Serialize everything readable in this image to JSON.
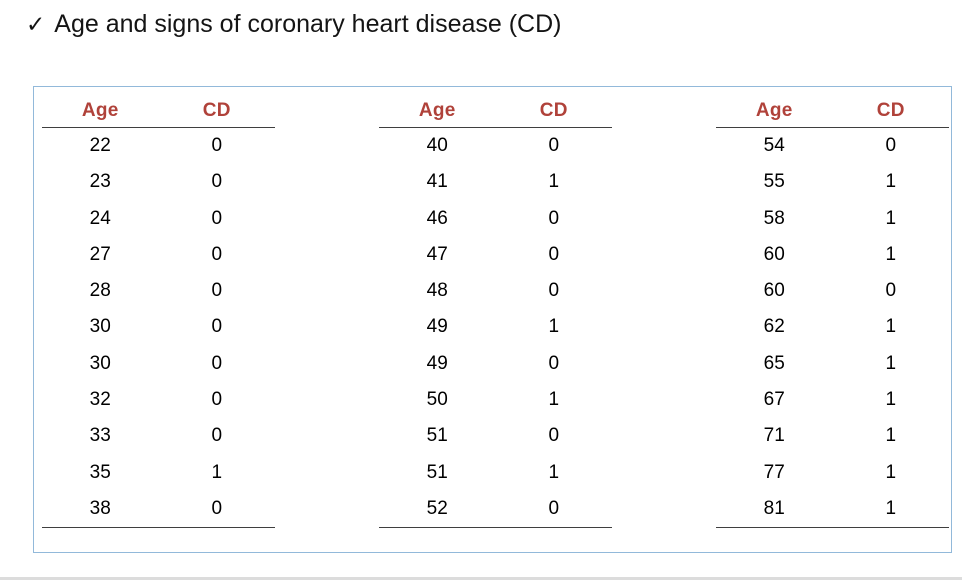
{
  "title": {
    "check": "✓",
    "text": "Age and signs of coronary heart disease (CD)"
  },
  "colors": {
    "header_text": "#b0423a",
    "box_border": "#92b9da",
    "rule": "#3f3f3f"
  },
  "table": {
    "groups": [
      {
        "headers": [
          "Age",
          "CD"
        ],
        "rows": [
          [
            "22",
            "0"
          ],
          [
            "23",
            "0"
          ],
          [
            "24",
            "0"
          ],
          [
            "27",
            "0"
          ],
          [
            "28",
            "0"
          ],
          [
            "30",
            "0"
          ],
          [
            "30",
            "0"
          ],
          [
            "32",
            "0"
          ],
          [
            "33",
            "0"
          ],
          [
            "35",
            "1"
          ],
          [
            "38",
            "0"
          ]
        ]
      },
      {
        "headers": [
          "Age",
          "CD"
        ],
        "rows": [
          [
            "40",
            "0"
          ],
          [
            "41",
            "1"
          ],
          [
            "46",
            "0"
          ],
          [
            "47",
            "0"
          ],
          [
            "48",
            "0"
          ],
          [
            "49",
            "1"
          ],
          [
            "49",
            "0"
          ],
          [
            "50",
            "1"
          ],
          [
            "51",
            "0"
          ],
          [
            "51",
            "1"
          ],
          [
            "52",
            "0"
          ]
        ]
      },
      {
        "headers": [
          "Age",
          "CD"
        ],
        "rows": [
          [
            "54",
            "0"
          ],
          [
            "55",
            "1"
          ],
          [
            "58",
            "1"
          ],
          [
            "60",
            "1"
          ],
          [
            "60",
            "0"
          ],
          [
            "62",
            "1"
          ],
          [
            "65",
            "1"
          ],
          [
            "67",
            "1"
          ],
          [
            "71",
            "1"
          ],
          [
            "77",
            "1"
          ],
          [
            "81",
            "1"
          ]
        ]
      }
    ]
  }
}
